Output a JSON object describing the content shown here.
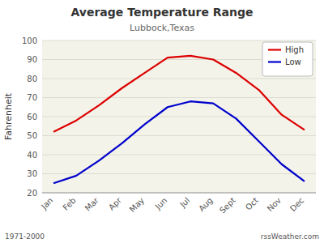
{
  "chart_data": {
    "type": "line",
    "title": "Average Temperature Range",
    "subtitle": "Lubbock,Texas",
    "ylabel": "Fahrenheit",
    "annotations": [
      "1971-2000",
      "rssWeather.com"
    ],
    "categories": [
      "Jan",
      "Feb",
      "Mar",
      "Apr",
      "May",
      "Jun",
      "Jul",
      "Aug",
      "Sept",
      "Oct",
      "Nov",
      "Dec"
    ],
    "series": [
      {
        "name": "High",
        "color": "#dd0000",
        "values": [
          52,
          58,
          66,
          75,
          83,
          91,
          92,
          90,
          83,
          74,
          61,
          53
        ]
      },
      {
        "name": "Low",
        "color": "#0000cc",
        "values": [
          25,
          29,
          37,
          46,
          56,
          65,
          68,
          67,
          59,
          47,
          35,
          26
        ]
      }
    ],
    "ylim": [
      20,
      100
    ],
    "yticks": [
      20,
      30,
      40,
      50,
      60,
      70,
      80,
      90,
      100
    ],
    "grid": true,
    "legend": "upper right"
  }
}
